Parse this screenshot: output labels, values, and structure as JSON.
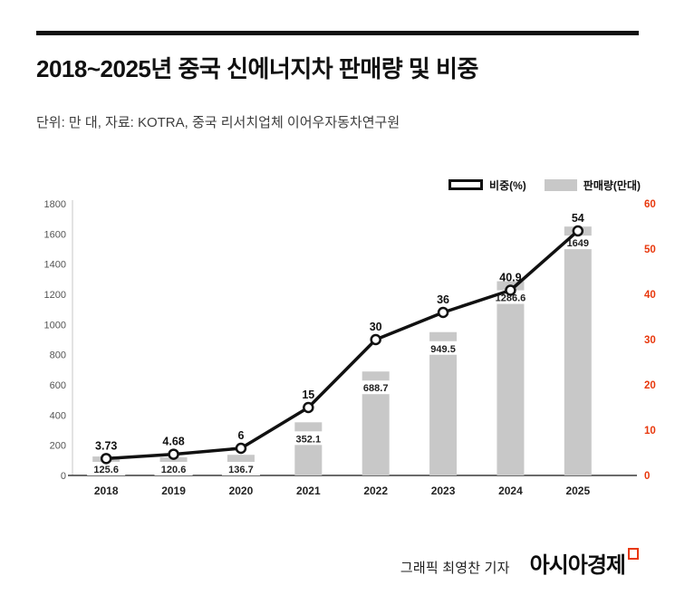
{
  "header": {
    "title": "2018~2025년 중국 신에너지차 판매량 및 비중",
    "subtitle": "단위: 만 대, 자료: KOTRA, 중국 리서치업체 이어우자동차연구원"
  },
  "legend": {
    "line_label": "비중(%)",
    "bar_label": "판매량(만대)"
  },
  "footer": {
    "credit": "그래픽 최영찬 기자",
    "logo": "아시아경제"
  },
  "colors": {
    "bar": "#c8c8c8",
    "line": "#111111",
    "accent_red": "#e8380d",
    "left_tick": "#555555",
    "x_label": "#222222"
  },
  "chart_data": {
    "type": "bar",
    "subtype": "bar+line combo, dual axis",
    "categories": [
      "2018",
      "2019",
      "2020",
      "2021",
      "2022",
      "2023",
      "2024",
      "2025"
    ],
    "series": [
      {
        "name": "판매량(만대)",
        "type": "bar",
        "axis": "left",
        "values": [
          125.6,
          120.6,
          136.7,
          352.1,
          688.7,
          949.5,
          1286.6,
          1649
        ]
      },
      {
        "name": "비중(%)",
        "type": "line",
        "axis": "right",
        "values": [
          3.73,
          4.68,
          6,
          15,
          30,
          36,
          40.9,
          54
        ]
      }
    ],
    "bar_labels": [
      "125.6",
      "120.6",
      "136.7",
      "352.1",
      "688.7",
      "949.5",
      "1286.6",
      "1649"
    ],
    "line_labels": [
      "3.73",
      "4.68",
      "6",
      "15",
      "30",
      "36",
      "40.9",
      "54"
    ],
    "left_axis": {
      "min": 0,
      "max": 1800,
      "step": 200
    },
    "right_axis": {
      "min": 0,
      "max": 60,
      "step": 10
    },
    "title": "2018~2025년 중국 신에너지차 판매량 및 비중",
    "xlabel": "",
    "ylabel_left": "판매량(만대)",
    "ylabel_right": "비중(%)",
    "grid": false,
    "legend_position": "top-right"
  }
}
